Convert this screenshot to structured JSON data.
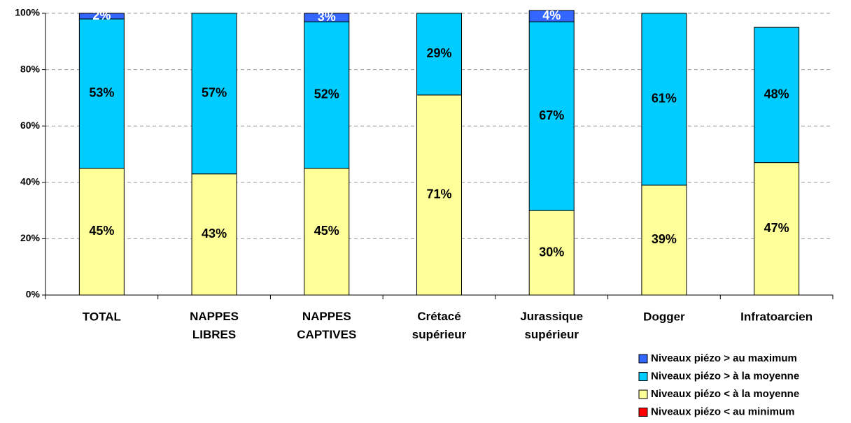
{
  "chart_data": {
    "type": "stacked_bar",
    "categories": [
      "TOTAL",
      "NAPPES LIBRES",
      "NAPPES CAPTIVES",
      "Crétacé supérieur",
      "Jurassique supérieur",
      "Dogger",
      "Infratoarcien"
    ],
    "series": [
      {
        "name": "Niveaux piézo < au minimum",
        "color": "#ff0000",
        "values": [
          0,
          0,
          0,
          0,
          0,
          0,
          0
        ],
        "value_labels": [
          null,
          null,
          null,
          null,
          null,
          null,
          null
        ]
      },
      {
        "name": "Niveaux piézo < à la moyenne",
        "color": "#ffff99",
        "values": [
          45,
          43,
          45,
          71,
          30,
          39,
          47
        ],
        "value_labels": [
          "45%",
          "43%",
          "45%",
          "71%",
          "30%",
          "39%",
          "47%"
        ]
      },
      {
        "name": "Niveaux piézo > à la moyenne",
        "color": "#00ccff",
        "values": [
          53,
          57,
          52,
          29,
          67,
          61,
          48
        ],
        "value_labels": [
          "53%",
          "57%",
          "52%",
          "29%",
          "67%",
          "61%",
          "48%"
        ]
      },
      {
        "name": "Niveaux piézo > au maximum",
        "color": "#3366ff",
        "values": [
          2,
          0,
          3,
          0,
          4,
          0,
          0
        ],
        "value_labels": [
          "2%",
          null,
          "3%",
          null,
          "4%",
          null,
          null
        ]
      }
    ],
    "ylim": [
      0,
      100
    ],
    "yticks": [
      {
        "value": 0,
        "label": "0%"
      },
      {
        "value": 20,
        "label": "20%"
      },
      {
        "value": 40,
        "label": "40%"
      },
      {
        "value": 60,
        "label": "60%"
      },
      {
        "value": 80,
        "label": "80%"
      },
      {
        "value": 100,
        "label": "100%"
      }
    ],
    "grid": true,
    "legend": "bottom-right"
  }
}
